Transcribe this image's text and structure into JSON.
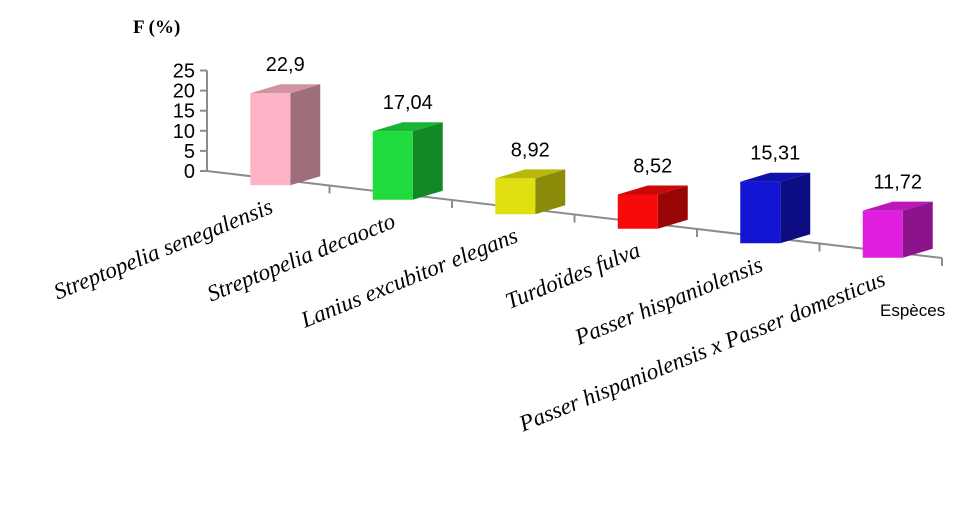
{
  "chart_data": {
    "type": "bar",
    "title": "",
    "ylabel": "F (%)",
    "xlabel": "Espèces",
    "ylim": [
      0,
      25
    ],
    "yticks": [
      "0",
      "5",
      "10",
      "15",
      "20",
      "25"
    ],
    "grid": false,
    "categories": [
      "Streptopelia senegalensis",
      "Streptopelia decaocto",
      "Lanius excubitor elegans",
      "Turdoïdes fulva",
      "Passer hispaniolensis",
      "Passer hispaniolensis x Passer domesticus"
    ],
    "values": [
      22.9,
      17.04,
      8.92,
      8.52,
      15.31,
      11.72
    ],
    "value_labels": [
      "22,9",
      "17,04",
      "8,92",
      "8,52",
      "15,31",
      "11,72"
    ],
    "colors": [
      "#ffb3c6",
      "#1fdb3e",
      "#e0e010",
      "#f80a0a",
      "#1414d4",
      "#e01ee0"
    ]
  }
}
